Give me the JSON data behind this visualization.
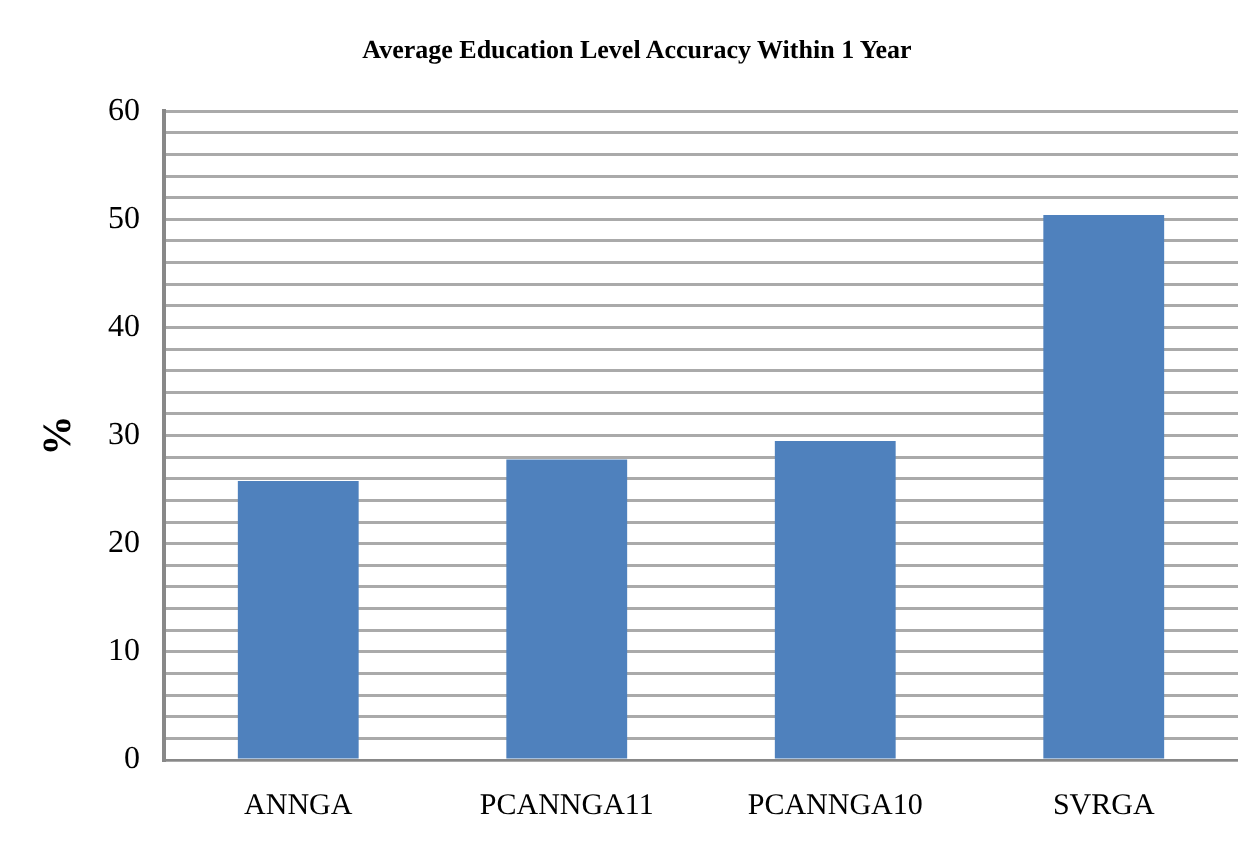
{
  "chart_data": {
    "type": "bar",
    "title": "Average Education Level Accuracy Within 1 Year",
    "ylabel": "%",
    "categories": [
      "ANNGA",
      "PCANNGA11",
      "PCANNGA10",
      "SVRGA"
    ],
    "values": [
      25.8,
      27.8,
      29.5,
      50.4
    ],
    "color": "#4f81bd",
    "ylim": [
      0,
      60
    ],
    "yticks": [
      0,
      {
        "value": 2,
        "label": null
      },
      {
        "value": 4,
        "label": null
      },
      {
        "value": 6,
        "label": null
      },
      {
        "value": 8,
        "label": null
      },
      10,
      {
        "value": 12,
        "label": null
      },
      {
        "value": 14,
        "label": null
      },
      {
        "value": 16,
        "label": null
      },
      {
        "value": 18,
        "label": null
      },
      20,
      {
        "value": 22,
        "label": null
      },
      {
        "value": 24,
        "label": null
      },
      {
        "value": 26,
        "label": null
      },
      {
        "value": 28,
        "label": null
      },
      30,
      {
        "value": 32,
        "label": null
      },
      {
        "value": 34,
        "label": null
      },
      {
        "value": 36,
        "label": null
      },
      {
        "value": 38,
        "label": null
      },
      40,
      {
        "value": 42,
        "label": null
      },
      {
        "value": 44,
        "label": null
      },
      {
        "value": 46,
        "label": null
      },
      {
        "value": 48,
        "label": null
      },
      50,
      {
        "value": 52,
        "label": null
      },
      {
        "value": 54,
        "label": null
      },
      {
        "value": 56,
        "label": null
      },
      {
        "value": 58,
        "label": null
      },
      60
    ],
    "grid": "y",
    "legend": false
  }
}
